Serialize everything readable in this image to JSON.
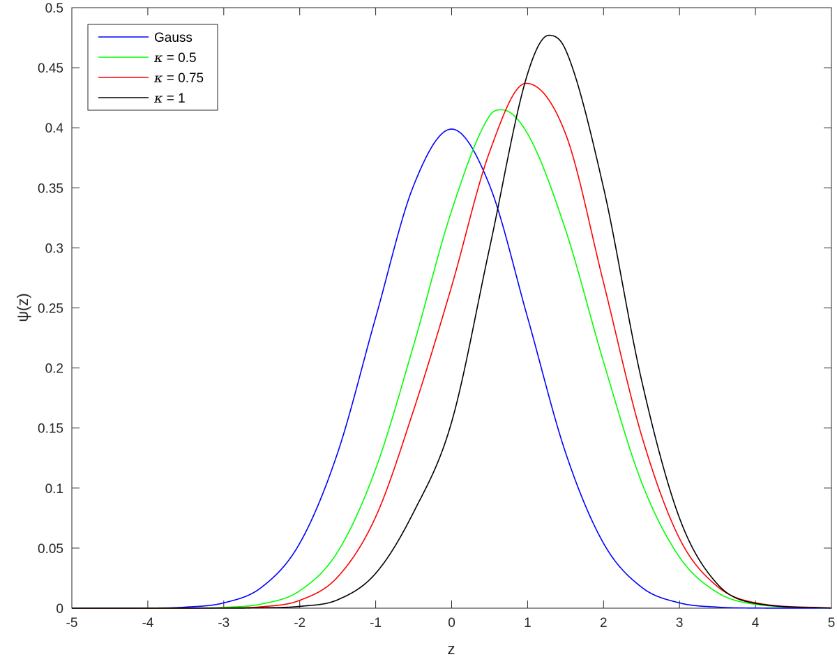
{
  "chart_data": {
    "type": "line",
    "title": "",
    "xlabel": "z",
    "ylabel": "ψ(z)",
    "xlim": [
      -5,
      5
    ],
    "ylim": [
      0,
      0.5
    ],
    "x_ticks": [
      "-5",
      "-4",
      "-3",
      "-2",
      "-1",
      "0",
      "1",
      "2",
      "3",
      "4",
      "5"
    ],
    "y_ticks": [
      "0",
      "0.05",
      "0.1",
      "0.15",
      "0.2",
      "0.25",
      "0.3",
      "0.35",
      "0.4",
      "0.45",
      "0.5"
    ],
    "grid": false,
    "legend_position": "top-left",
    "series": [
      {
        "name": "Gauss",
        "name_parts": [
          "",
          "Gauss"
        ],
        "color": "#0000ff",
        "x": [
          -5,
          -4,
          -3.5,
          -3,
          -2.5,
          -2,
          -1.5,
          -1,
          -0.5,
          0,
          0.5,
          1,
          1.5,
          2,
          2.5,
          3,
          3.5,
          4,
          5
        ],
        "y": [
          1.5e-06,
          0.0001,
          0.0009,
          0.0044,
          0.0175,
          0.054,
          0.1295,
          0.242,
          0.352,
          0.3989,
          0.352,
          0.242,
          0.1295,
          0.054,
          0.0175,
          0.0044,
          0.0009,
          0.0001,
          1.5e-06
        ]
      },
      {
        "name": "κ = 0.5",
        "name_parts": [
          "κ",
          " = 0.5"
        ],
        "color": "#00ff00",
        "x": [
          -5,
          -4,
          -3.5,
          -3,
          -2.5,
          -2,
          -1.5,
          -1,
          -0.5,
          0,
          0.5,
          0.66,
          1,
          1.5,
          2,
          2.5,
          3,
          3.5,
          4,
          5
        ],
        "y": [
          0,
          1e-05,
          0.0001,
          0.0007,
          0.0035,
          0.0145,
          0.047,
          0.116,
          0.219,
          0.331,
          0.41,
          0.415,
          0.395,
          0.315,
          0.205,
          0.105,
          0.0425,
          0.013,
          0.0032,
          0.0001
        ]
      },
      {
        "name": "κ = 0.75",
        "name_parts": [
          "κ",
          " = 0.75"
        ],
        "color": "#ff0000",
        "x": [
          -5,
          -4,
          -3,
          -2.5,
          -2,
          -1.5,
          -1,
          -0.5,
          0,
          0.5,
          0.98,
          1.5,
          2,
          2.5,
          3,
          3.5,
          4,
          5
        ],
        "y": [
          0,
          0,
          0.0002,
          0.0012,
          0.0065,
          0.026,
          0.076,
          0.165,
          0.268,
          0.38,
          0.437,
          0.395,
          0.271,
          0.144,
          0.058,
          0.018,
          0.0045,
          0.0001
        ]
      },
      {
        "name": "κ = 1",
        "name_parts": [
          "κ",
          " = 1"
        ],
        "color": "#000000",
        "x": [
          -5,
          -4,
          -3,
          -2.5,
          -2,
          -1.5,
          -1,
          -0.5,
          0,
          0.5,
          1,
          1.28,
          1.5,
          2,
          2.5,
          3,
          3.5,
          4,
          5
        ],
        "y": [
          0,
          0,
          0,
          0.0003,
          0.0015,
          0.007,
          0.029,
          0.08,
          0.155,
          0.3,
          0.445,
          0.477,
          0.465,
          0.35,
          0.19,
          0.075,
          0.02,
          0.004,
          0.0001
        ]
      }
    ]
  }
}
